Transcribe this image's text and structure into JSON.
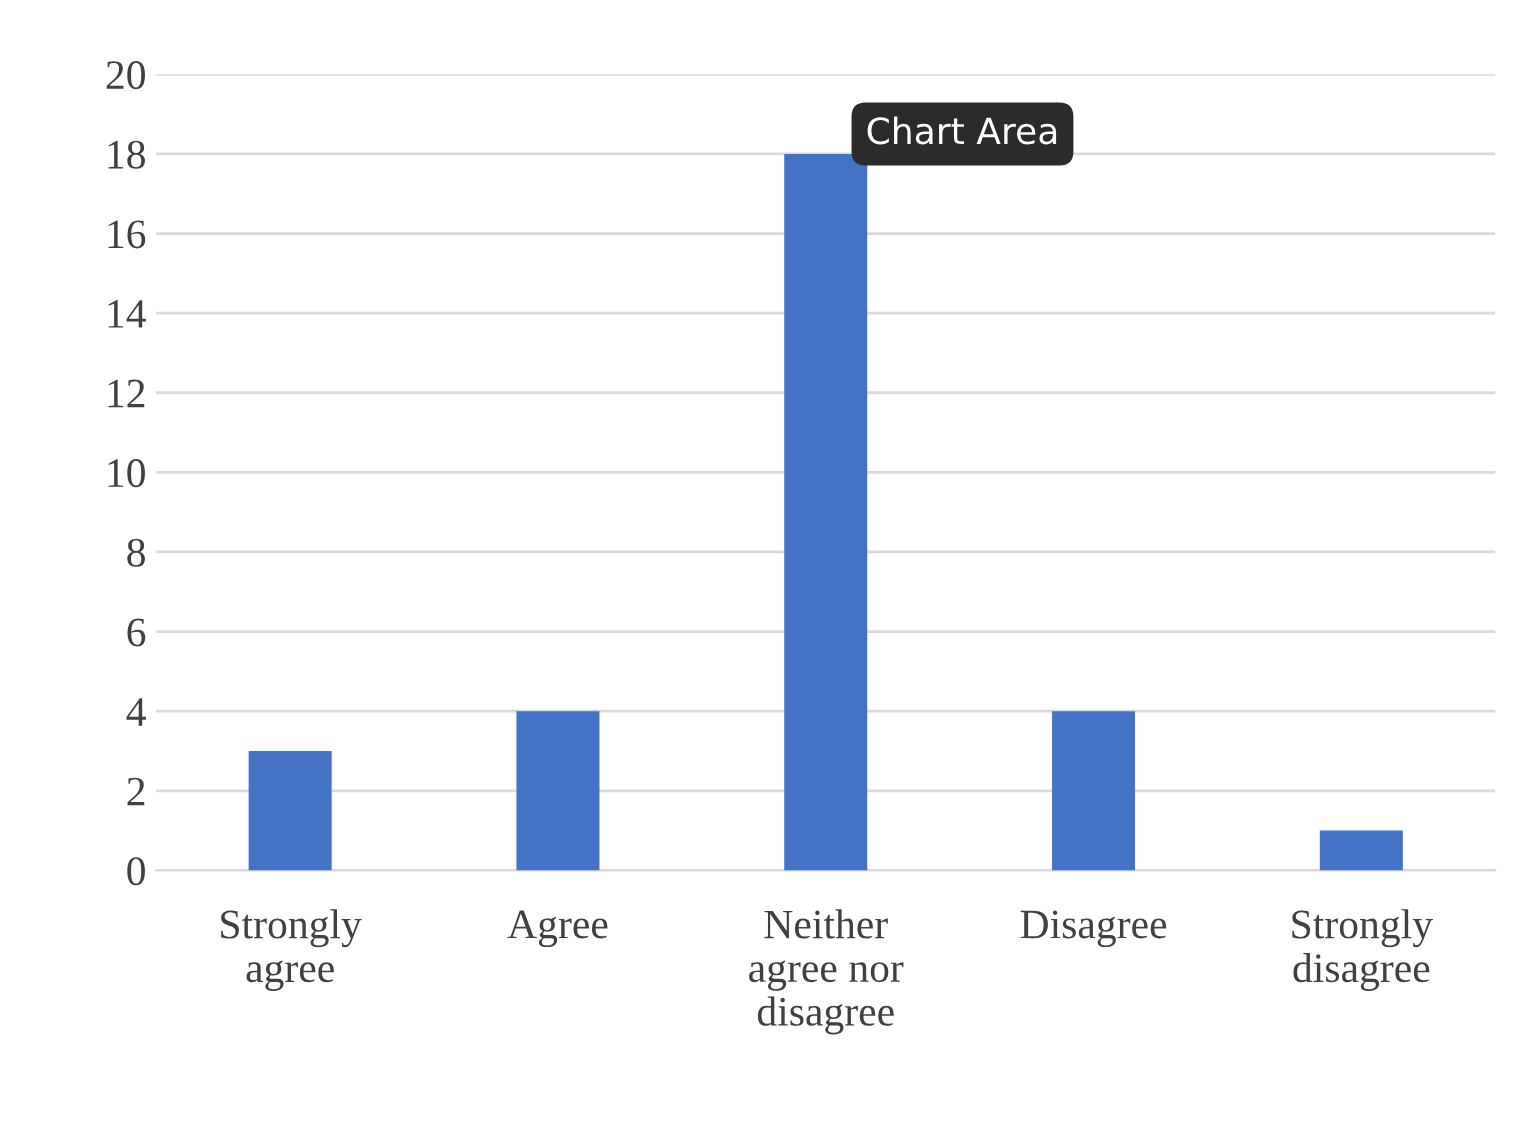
{
  "chart_data": {
    "type": "bar",
    "categories": [
      "Strongly\nagree",
      "Agree",
      "Neither\nagree nor\ndisagree",
      "Disagree",
      "Strongly\ndisagree"
    ],
    "values": [
      3,
      4,
      18,
      4,
      1
    ],
    "color": "#4472c4",
    "ylim": [
      0,
      20
    ],
    "yticks": [
      0,
      2,
      4,
      6,
      8,
      10,
      12,
      14,
      16,
      18,
      20
    ],
    "grid": "y",
    "legend": false,
    "annotations": [
      "Chart Area"
    ]
  }
}
